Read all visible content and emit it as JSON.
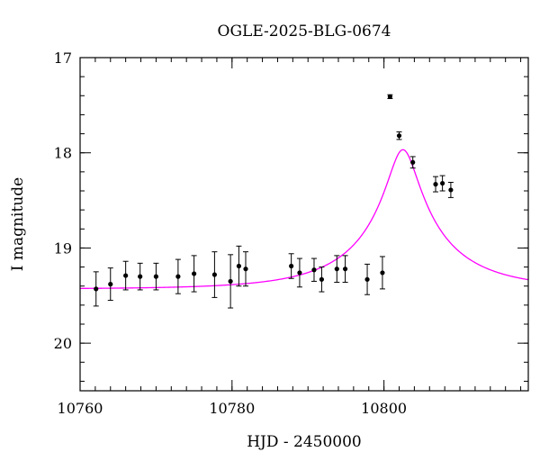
{
  "chart_data": {
    "type": "scatter",
    "title": "OGLE-2025-BLG-0674",
    "xlabel": "HJD - 2450000",
    "ylabel": "I magnitude",
    "xlim": [
      10760,
      10819
    ],
    "ylim": [
      20.5,
      17.0
    ],
    "y_inverted": true,
    "x_ticks": [
      10760,
      10780,
      10800
    ],
    "y_ticks": [
      17,
      18,
      19,
      20
    ],
    "x_minor_step": 2,
    "y_minor_step": 0.2,
    "grid": false,
    "legend": "none",
    "colors": {
      "data": "#000000",
      "model": "#ff00ff"
    },
    "series": [
      {
        "kind": "points-with-errorbars",
        "x": [
          10762.1,
          10764.0,
          10766.0,
          10767.9,
          10770.0,
          10772.9,
          10775.0,
          10777.7,
          10779.8,
          10780.9,
          10781.8,
          10787.8,
          10788.9,
          10790.8,
          10791.8,
          10793.8,
          10794.9,
          10797.8,
          10799.8,
          10800.8,
          10802.0,
          10803.8,
          10806.8,
          10807.7,
          10808.8
        ],
        "y": [
          19.43,
          19.38,
          19.29,
          19.3,
          19.3,
          19.3,
          19.27,
          19.28,
          19.35,
          19.19,
          19.22,
          19.19,
          19.26,
          19.23,
          19.33,
          19.22,
          19.22,
          19.33,
          19.26,
          17.41,
          17.82,
          18.1,
          18.33,
          18.32,
          18.39
        ],
        "yerr": [
          0.18,
          0.17,
          0.15,
          0.14,
          0.14,
          0.18,
          0.19,
          0.24,
          0.28,
          0.21,
          0.18,
          0.13,
          0.15,
          0.12,
          0.13,
          0.14,
          0.14,
          0.16,
          0.17,
          0.02,
          0.04,
          0.06,
          0.08,
          0.08,
          0.08
        ]
      },
      {
        "kind": "model-curve",
        "model": "point-lens",
        "t0": 10802.5,
        "tE": 13,
        "u0": 0.145,
        "I_source": 20.23,
        "I_blend": 20.14
      }
    ]
  }
}
